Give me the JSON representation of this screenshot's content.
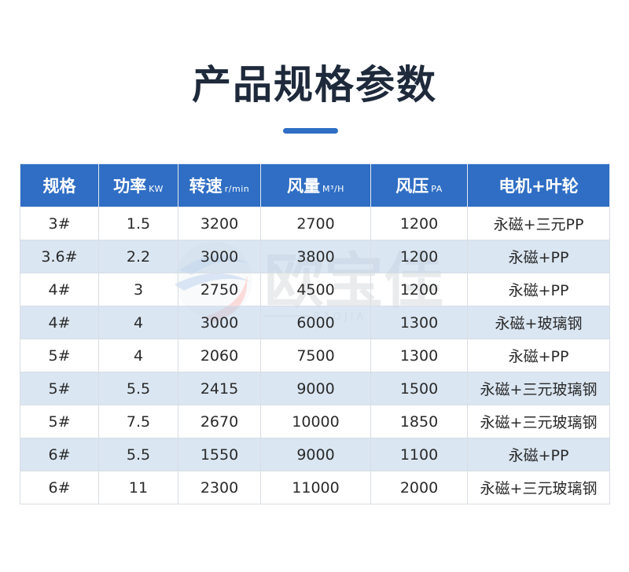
{
  "title": "产品规格参数",
  "watermark": {
    "brand_text": "欧宝佳",
    "pinyin": "BAOJIA"
  },
  "table": {
    "headers": [
      {
        "label": "规格",
        "unit": ""
      },
      {
        "label": "功率",
        "unit": "KW"
      },
      {
        "label": "转速",
        "unit": "r/min"
      },
      {
        "label": "风量",
        "unit": "M³/H"
      },
      {
        "label": "风压",
        "unit": "PA"
      },
      {
        "label": "电机+叶轮",
        "unit": ""
      }
    ],
    "rows": [
      [
        "3#",
        "1.5",
        "3200",
        "2700",
        "1200",
        "永磁+三元PP"
      ],
      [
        "3.6#",
        "2.2",
        "3000",
        "3800",
        "1200",
        "永磁+PP"
      ],
      [
        "4#",
        "3",
        "2750",
        "4500",
        "1200",
        "永磁+PP"
      ],
      [
        "4#",
        "4",
        "3000",
        "6000",
        "1300",
        "永磁+玻璃钢"
      ],
      [
        "5#",
        "4",
        "2060",
        "7500",
        "1300",
        "永磁+PP"
      ],
      [
        "5#",
        "5.5",
        "2415",
        "9000",
        "1500",
        "永磁+三元玻璃钢"
      ],
      [
        "5#",
        "7.5",
        "2670",
        "10000",
        "1850",
        "永磁+三元玻璃钢"
      ],
      [
        "6#",
        "5.5",
        "1550",
        "9000",
        "1100",
        "永磁+PP"
      ],
      [
        "6#",
        "11",
        "2300",
        "11000",
        "2000",
        "永磁+三元玻璃钢"
      ]
    ]
  },
  "colors": {
    "header_bg": "#2f6ec4",
    "alt_row_bg": "#cfdfee",
    "title_text": "#1e2a3b",
    "accent_bar": "#2f6ec4",
    "logo_red": "#e8443a",
    "logo_blue": "#2f6ec4"
  }
}
